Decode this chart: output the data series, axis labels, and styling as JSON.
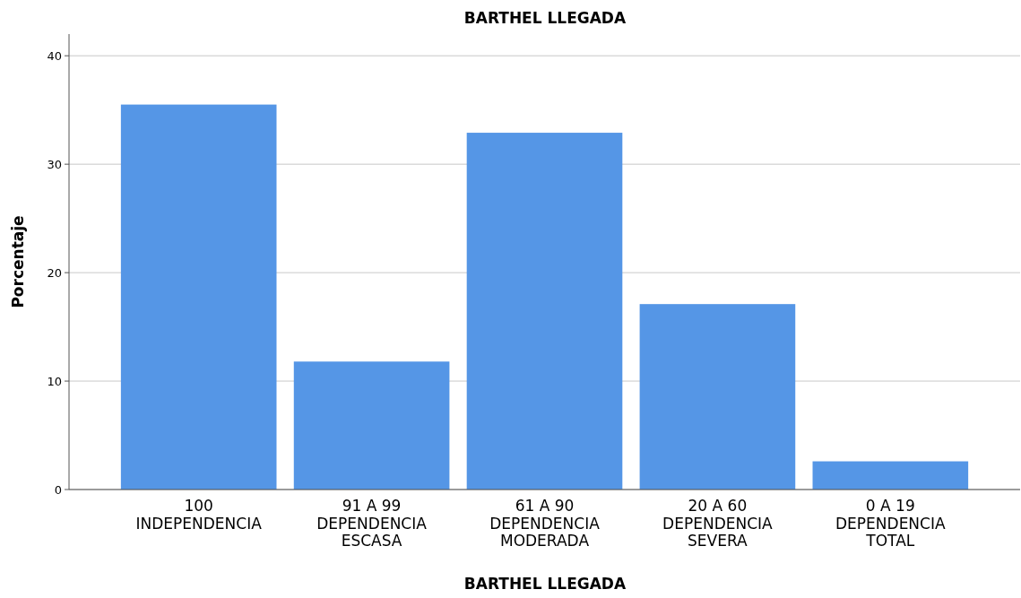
{
  "chart_data": {
    "type": "bar",
    "title": "BARTHEL LLEGADA",
    "xlabel": "BARTHEL LLEGADA",
    "ylabel": "Porcentaje",
    "categories": [
      "100\nINDEPENDENCIA",
      "91 A 99\nDEPENDENCIA\nESCASA",
      "61 A 90\nDEPENDENCIA\nMODERADA",
      "20 A 60\nDEPENDENCIA\nSEVERA",
      "0 A 19\nDEPENDENCIA\nTOTAL"
    ],
    "values": [
      35.5,
      11.8,
      32.9,
      17.1,
      2.6
    ],
    "color": "#5596e6",
    "ylim": [
      0,
      42
    ],
    "yticks": [
      0,
      10,
      20,
      30,
      40
    ],
    "grid": "y"
  }
}
